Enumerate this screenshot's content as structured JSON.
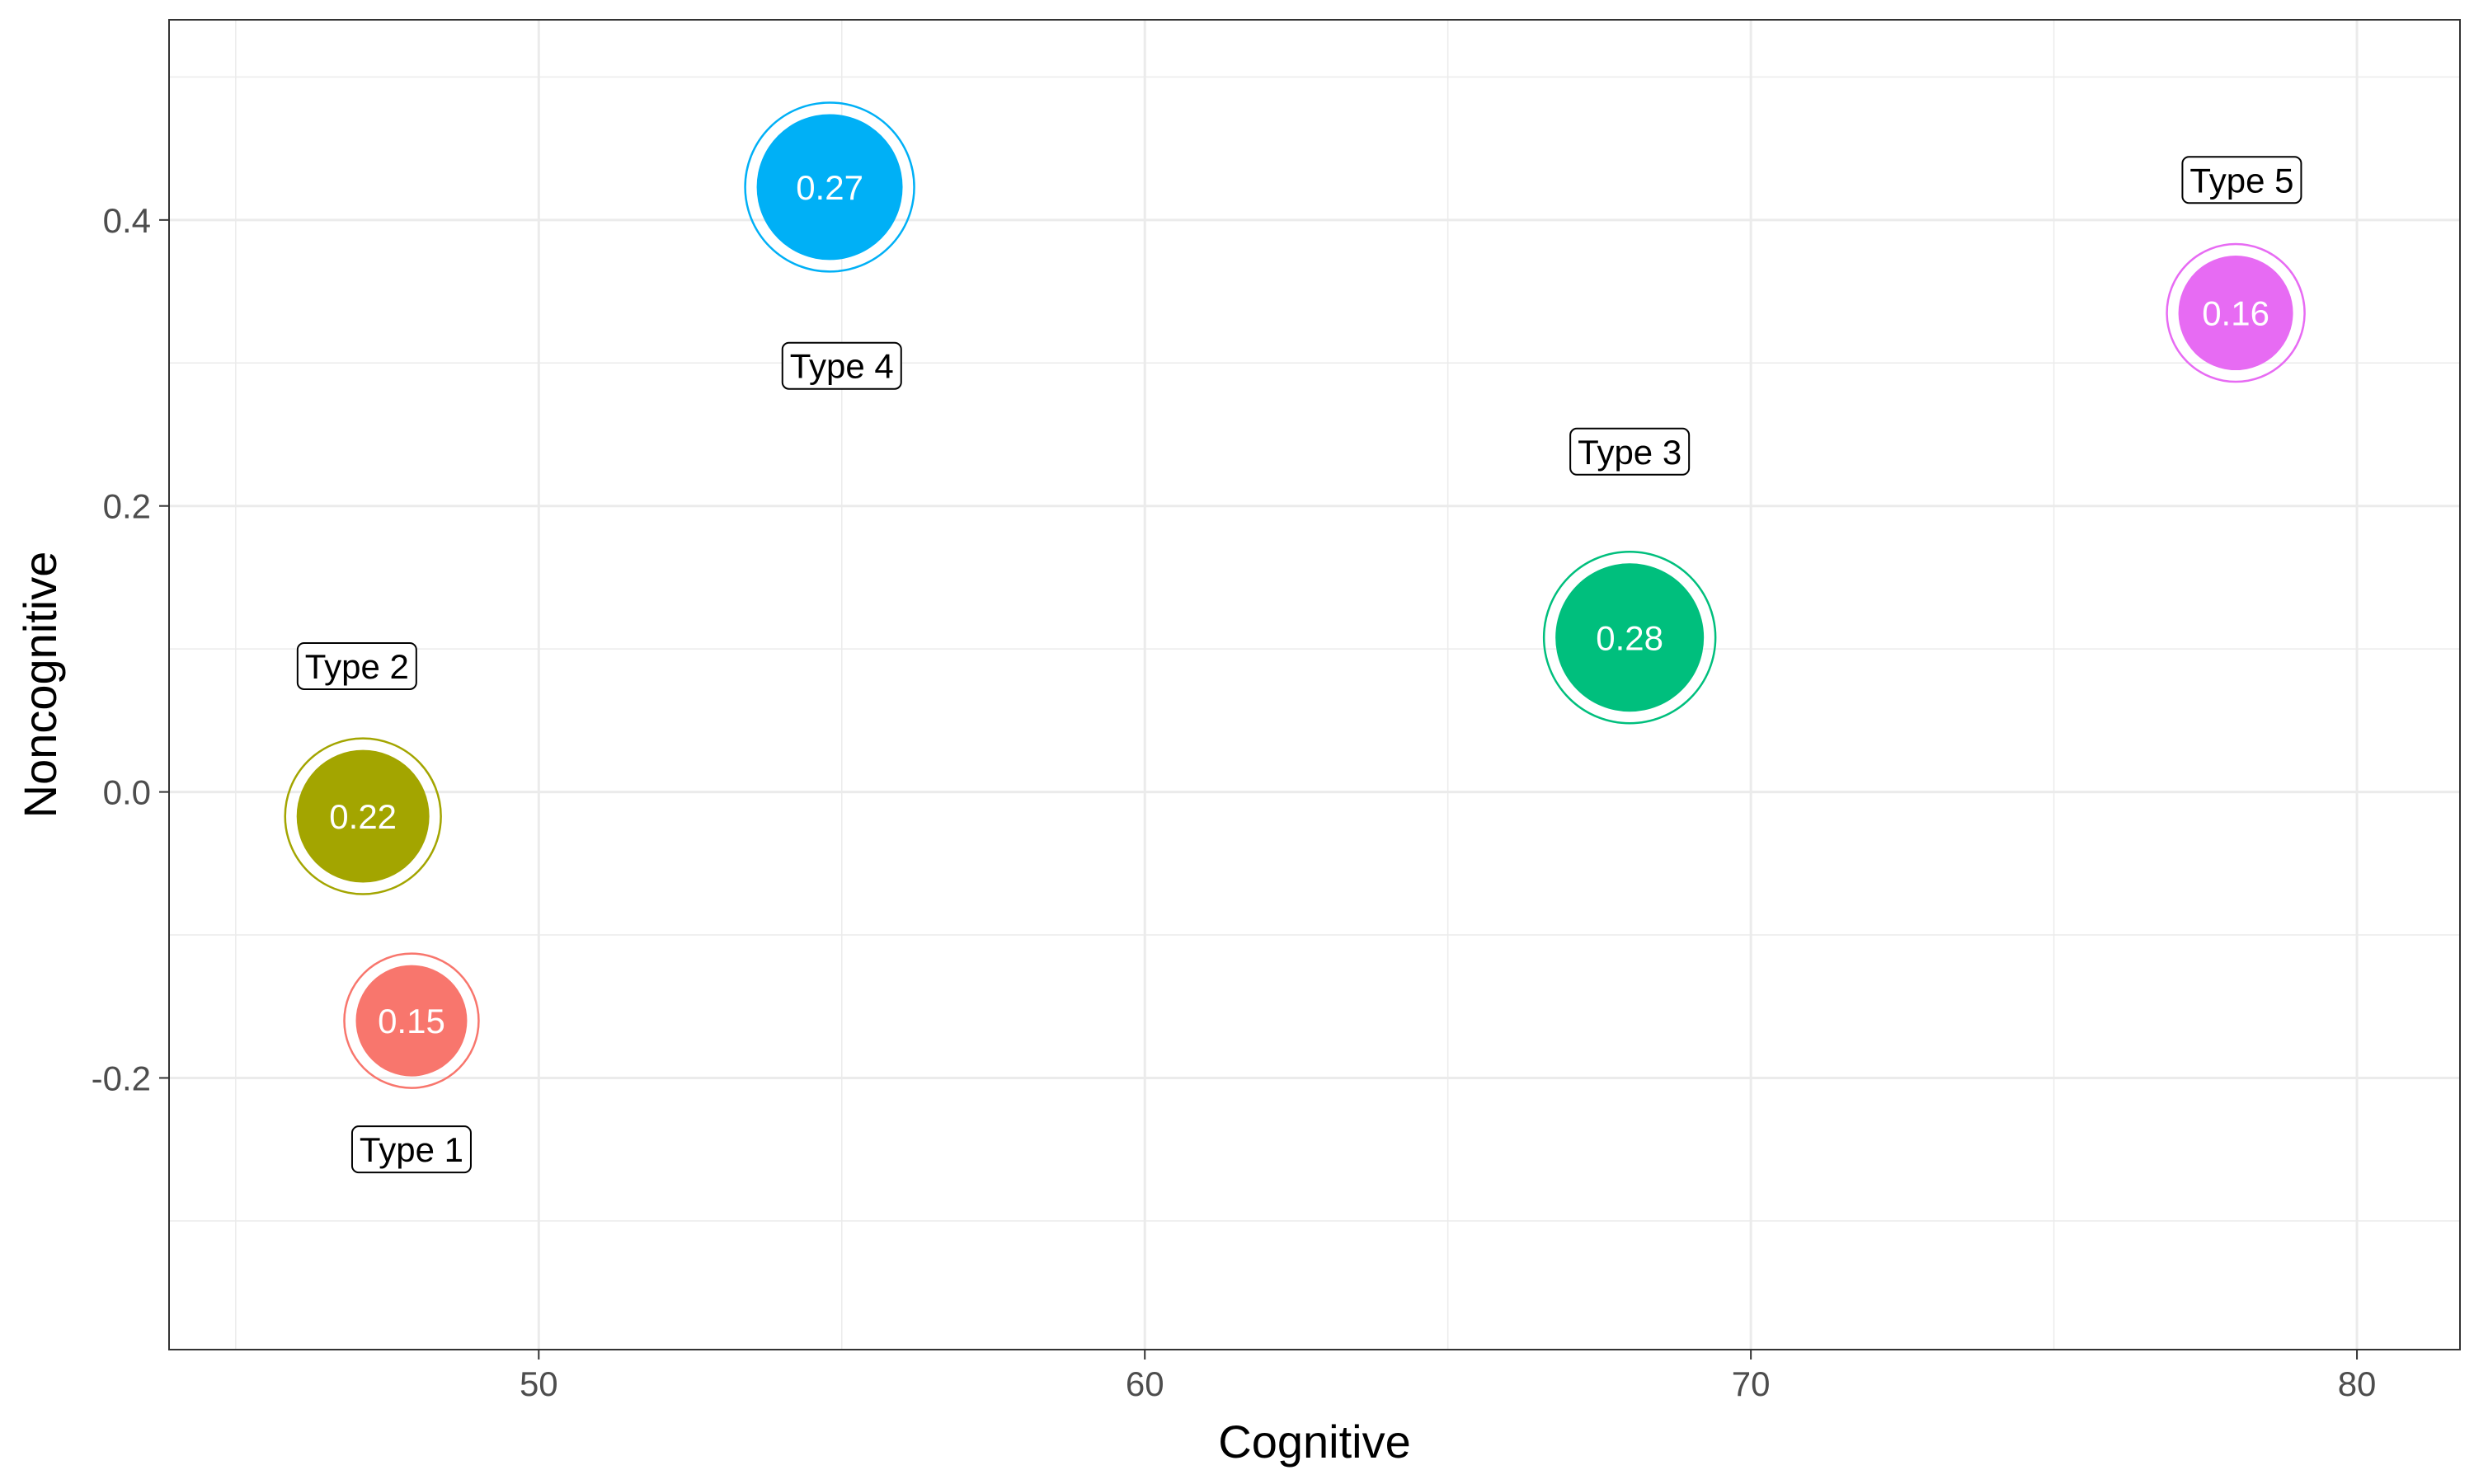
{
  "chart_data": {
    "type": "scatter",
    "title": "",
    "xlabel": "Cognitive",
    "ylabel": "Noncognitive",
    "xlim": [
      43.9,
      81.7
    ],
    "ylim": [
      -0.39,
      0.54
    ],
    "x_ticks": [
      50,
      60,
      70,
      80
    ],
    "x_tick_labels": [
      "50",
      "60",
      "70",
      "80"
    ],
    "x_minor_ticks": [
      45,
      55,
      65,
      75
    ],
    "y_ticks": [
      -0.2,
      0.0,
      0.2,
      0.4
    ],
    "y_tick_labels": [
      "-0.2",
      "0.0",
      "0.2",
      "0.4"
    ],
    "y_minor_ticks": [
      -0.3,
      -0.1,
      0.1,
      0.3,
      0.5
    ],
    "grid": true,
    "legend": "none",
    "points": [
      {
        "name": "Type 1",
        "x": 47.9,
        "y": -0.16,
        "value": "0.15",
        "color": "#F8766D",
        "label_x": 47.9,
        "label_y": -0.25
      },
      {
        "name": "Type 2",
        "x": 47.1,
        "y": -0.017,
        "value": "0.22",
        "color": "#A3A500",
        "label_x": 47.0,
        "label_y": 0.088
      },
      {
        "name": "Type 3",
        "x": 68.0,
        "y": 0.108,
        "value": "0.28",
        "color": "#00BF7D",
        "label_x": 68.0,
        "label_y": 0.238
      },
      {
        "name": "Type 4",
        "x": 54.8,
        "y": 0.423,
        "value": "0.27",
        "color": "#00B0F6",
        "label_x": 55.0,
        "label_y": 0.298
      },
      {
        "name": "Type 5",
        "x": 78.0,
        "y": 0.335,
        "value": "0.16",
        "color": "#E76BF3",
        "label_x": 78.1,
        "label_y": 0.428
      }
    ]
  }
}
